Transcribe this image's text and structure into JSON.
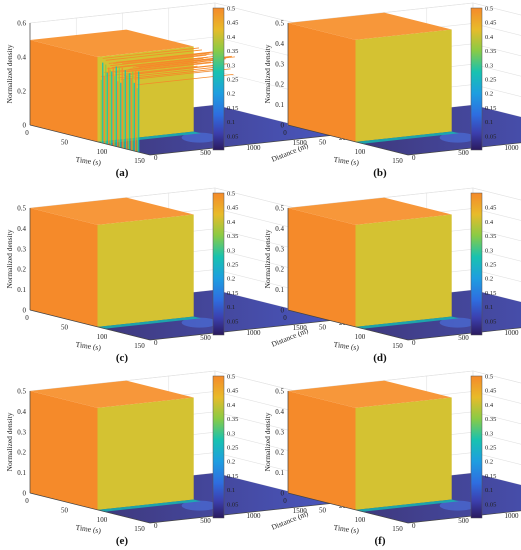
{
  "colors": {
    "surface_high": "#f58a2a",
    "surface_low": "#2b1a5e",
    "pane": "#ffffff",
    "grid": "#e2e2e2",
    "axis": "#444444"
  },
  "chart_data": [
    {
      "type": "surface3d",
      "panel_label": "(a)",
      "xlabel": "Time (s)",
      "ylabel": "Distance (m)",
      "zlabel": "Normalized density",
      "x_ticks": [
        "0",
        "50",
        "100",
        "150"
      ],
      "y_ticks": [
        "0",
        "500",
        "1000",
        "1500",
        "2000"
      ],
      "z_ticks": [
        "0",
        "0.2",
        "0.4",
        "0.6"
      ],
      "xlim": [
        0,
        160
      ],
      "ylim": [
        0,
        2000
      ],
      "zlim": [
        0,
        0.6
      ],
      "plateau_density": 0.5,
      "plateau_time_end": 90,
      "oscillating_region_time": [
        95,
        145
      ],
      "colorbar": {
        "min": 0,
        "max": 0.5,
        "ticks": [
          "0.5",
          "0.45",
          "0.4",
          "0.35",
          "0.3",
          "0.25",
          "0.2",
          "0.15",
          "0.1",
          "0.05"
        ]
      }
    },
    {
      "type": "surface3d",
      "panel_label": "(b)",
      "xlabel": "Time (s)",
      "ylabel": "Distance (m)",
      "zlabel": "Normalized density",
      "x_ticks": [
        "0",
        "50",
        "100",
        "150"
      ],
      "y_ticks": [
        "0",
        "500",
        "1000",
        "1500",
        "2000"
      ],
      "z_ticks": [
        "0",
        "0.1",
        "0.2",
        "0.3",
        "0.4",
        "0.5"
      ],
      "xlim": [
        0,
        160
      ],
      "ylim": [
        0,
        2000
      ],
      "zlim": [
        0,
        0.5
      ],
      "plateau_density": 0.5,
      "plateau_time_end": 90,
      "colorbar": {
        "min": 0,
        "max": 0.5,
        "ticks": [
          "0.5",
          "0.45",
          "0.4",
          "0.35",
          "0.3",
          "0.25",
          "0.2",
          "0.15",
          "0.1",
          "0.05"
        ]
      }
    },
    {
      "type": "surface3d",
      "panel_label": "(c)",
      "xlabel": "Time (s)",
      "ylabel": "Distance (m)",
      "zlabel": "Normalized density",
      "x_ticks": [
        "0",
        "50",
        "100",
        "150"
      ],
      "y_ticks": [
        "0",
        "500",
        "1000",
        "1500",
        "2000"
      ],
      "z_ticks": [
        "0",
        "0.1",
        "0.2",
        "0.3",
        "0.4",
        "0.5"
      ],
      "xlim": [
        0,
        160
      ],
      "ylim": [
        0,
        2000
      ],
      "zlim": [
        0,
        0.5
      ],
      "plateau_density": 0.5,
      "plateau_time_end": 90,
      "colorbar": {
        "min": 0,
        "max": 0.5,
        "ticks": [
          "0.5",
          "0.45",
          "0.4",
          "0.35",
          "0.3",
          "0.25",
          "0.2",
          "0.15",
          "0.1",
          "0.05"
        ]
      }
    },
    {
      "type": "surface3d",
      "panel_label": "(d)",
      "xlabel": "Time (s)",
      "ylabel": "Distance (m)",
      "zlabel": "Normalized density",
      "x_ticks": [
        "0",
        "50",
        "100",
        "150"
      ],
      "y_ticks": [
        "0",
        "500",
        "1000",
        "1500",
        "2000"
      ],
      "z_ticks": [
        "0",
        "0.1",
        "0.2",
        "0.3",
        "0.4",
        "0.5"
      ],
      "xlim": [
        0,
        160
      ],
      "ylim": [
        0,
        2000
      ],
      "zlim": [
        0,
        0.5
      ],
      "plateau_density": 0.5,
      "plateau_time_end": 90,
      "colorbar": {
        "min": 0,
        "max": 0.5,
        "ticks": [
          "0.45",
          "0.4",
          "0.35",
          "0.3",
          "0.25",
          "0.2",
          "0.15",
          "0.1",
          "0.05"
        ]
      }
    },
    {
      "type": "surface3d",
      "panel_label": "(e)",
      "xlabel": "Time (s)",
      "ylabel": "Distance (m)",
      "zlabel": "Normalized density",
      "x_ticks": [
        "0",
        "50",
        "100",
        "150"
      ],
      "y_ticks": [
        "0",
        "500",
        "1000",
        "1500",
        "2000"
      ],
      "z_ticks": [
        "0",
        "0.1",
        "0.2",
        "0.3",
        "0.4",
        "0.5"
      ],
      "xlim": [
        0,
        160
      ],
      "ylim": [
        0,
        2000
      ],
      "zlim": [
        0,
        0.5
      ],
      "plateau_density": 0.5,
      "plateau_time_end": 90,
      "colorbar": {
        "min": 0,
        "max": 0.5,
        "ticks": [
          "0.5",
          "0.45",
          "0.4",
          "0.35",
          "0.3",
          "0.25",
          "0.2",
          "0.15",
          "0.1",
          "0.05"
        ]
      }
    },
    {
      "type": "surface3d",
      "panel_label": "(f)",
      "xlabel": "Time (s)",
      "ylabel": "Distance (m)",
      "zlabel": "Normalized density",
      "x_ticks": [
        "0",
        "50",
        "100",
        "150"
      ],
      "y_ticks": [
        "0",
        "500",
        "1000",
        "1500",
        "2000"
      ],
      "z_ticks": [
        "0",
        "0.1",
        "0.2",
        "0.3",
        "0.4",
        "0.5"
      ],
      "xlim": [
        0,
        160
      ],
      "ylim": [
        0,
        2000
      ],
      "zlim": [
        0,
        0.5
      ],
      "plateau_density": 0.5,
      "plateau_time_end": 90,
      "colorbar": {
        "min": 0,
        "max": 0.5,
        "ticks": [
          "0.5",
          "0.45",
          "0.4",
          "0.35",
          "0.3",
          "0.25",
          "0.2",
          "0.15",
          "0.1",
          "0.05"
        ]
      }
    }
  ]
}
